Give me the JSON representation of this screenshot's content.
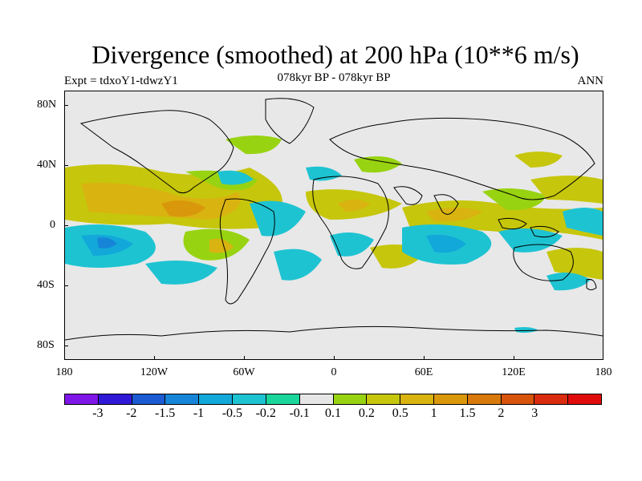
{
  "title": "Divergence (smoothed) at 200 hPa (10**6 m/s)",
  "subtitle": "078kyr BP - 078kyr BP",
  "experiment": "Expt = tdxoY1-tdwzY1",
  "season": "ANN",
  "lat_labels": [
    "80N",
    "40N",
    "0",
    "40S",
    "80S"
  ],
  "lon_labels": [
    "180",
    "120W",
    "60W",
    "0",
    "60E",
    "120E",
    "180"
  ],
  "colorbar": {
    "colors": [
      "#7f16e8",
      "#2f19d6",
      "#1b5ad1",
      "#1685d8",
      "#12a8d9",
      "#1ec3d2",
      "#1ad69b",
      "#e6e6e6",
      "#98d311",
      "#c6c60c",
      "#d9b310",
      "#d9970c",
      "#d8790c",
      "#d8530c",
      "#d92c0e",
      "#e00b0b"
    ],
    "labels": [
      "-3",
      "-2",
      "-1.5",
      "-1",
      "-0.5",
      "-0.2",
      "-0.1",
      "0.1",
      "0.2",
      "0.5",
      "1",
      "1.5",
      "2",
      "3"
    ]
  }
}
